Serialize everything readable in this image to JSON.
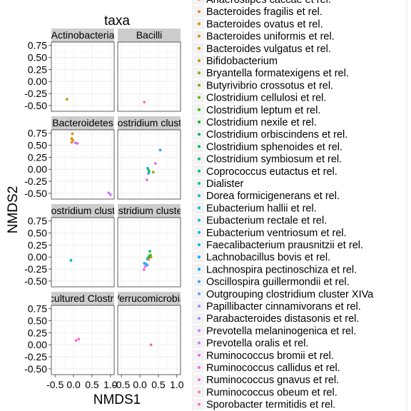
{
  "chart_data": {
    "type": "scatter",
    "title": "taxa",
    "xlabel": "NMDS1",
    "ylabel": "NMDS2",
    "xlim": [
      -0.6,
      1.1
    ],
    "ylim": [
      -0.62,
      0.82
    ],
    "x_ticks": [
      "-0.5",
      "0.0",
      "0.5",
      "1.0"
    ],
    "x_tick_values": [
      -0.5,
      0.0,
      0.5,
      1.0
    ],
    "y_ticks": [
      "0.75",
      "0.50",
      "0.25",
      "0.00",
      "-0.25",
      "-0.50"
    ],
    "y_tick_values": [
      0.75,
      0.5,
      0.25,
      0.0,
      -0.25,
      -0.5
    ],
    "facet_strip_bg": "#cccccc",
    "panel_bg": "#ffffff",
    "grid_color": "#ebebeb",
    "legend": {
      "items": [
        {
          "label": "Anaerostipes caccae et rel.",
          "color": "#f8766d"
        },
        {
          "label": "Bacteroides fragilis et rel.",
          "color": "#ef7f2e"
        },
        {
          "label": "Bacteroides ovatus et rel.",
          "color": "#e38900"
        },
        {
          "label": "Bacteroides uniformis et rel.",
          "color": "#d49200"
        },
        {
          "label": "Bacteroides vulgatus et rel.",
          "color": "#c49a00"
        },
        {
          "label": "Bifidobacterium",
          "color": "#b2a100"
        },
        {
          "label": "Bryantella formatexigens et rel.",
          "color": "#9da700"
        },
        {
          "label": "Butyrivibrio crossotus et rel.",
          "color": "#86ac00"
        },
        {
          "label": "Clostridium cellulosi et rel.",
          "color": "#6bb100"
        },
        {
          "label": "Clostridium leptum et rel.",
          "color": "#44b400"
        },
        {
          "label": "Clostridium nexile et rel.",
          "color": "#00b81f"
        },
        {
          "label": "Clostridium orbiscindens et rel.",
          "color": "#00ba48"
        },
        {
          "label": "Clostridium sphenoides et rel.",
          "color": "#00bc62"
        },
        {
          "label": "Clostridium symbiosum et rel.",
          "color": "#00be79"
        },
        {
          "label": "Coprococcus eutactus et rel.",
          "color": "#00bf8e"
        },
        {
          "label": "Dialister",
          "color": "#00c0a1"
        },
        {
          "label": "Dorea formicigenerans et rel.",
          "color": "#00c0b3"
        },
        {
          "label": "Eubacterium hallii et rel.",
          "color": "#00bfc4"
        },
        {
          "label": "Eubacterium rectale et rel.",
          "color": "#00bdd3"
        },
        {
          "label": "Eubacterium ventriosum et rel.",
          "color": "#00bae1"
        },
        {
          "label": "Faecalibacterium prausnitzii et rel.",
          "color": "#00b5ee"
        },
        {
          "label": "Lachnobacillus bovis et rel.",
          "color": "#00aff8"
        },
        {
          "label": "Lachnospira pectinoschiza et rel.",
          "color": "#00a8ff"
        },
        {
          "label": "Oscillospira guillermondii et rel.",
          "color": "#35a0ff"
        },
        {
          "label": "Outgrouping clostridium cluster XIVa",
          "color": "#6f97ff"
        },
        {
          "label": "Papillibacter cinnamivorans et rel.",
          "color": "#938dff"
        },
        {
          "label": "Parabacteroides distasonis et rel.",
          "color": "#ae83ff"
        },
        {
          "label": "Prevotella melaninogenica et rel.",
          "color": "#c37bff"
        },
        {
          "label": "Prevotella oralis et rel.",
          "color": "#d474fc"
        },
        {
          "label": "Ruminococcus bromii et rel.",
          "color": "#e16ff3"
        },
        {
          "label": "Ruminococcus callidus et rel.",
          "color": "#ec6be8"
        },
        {
          "label": "Ruminococcus gnavus et rel.",
          "color": "#f66adb"
        },
        {
          "label": "Ruminococcus obeum et rel.",
          "color": "#fb6dcb"
        },
        {
          "label": "Sporobacter termitidis et rel.",
          "color": "#fe70ba"
        }
      ]
    },
    "facets": [
      {
        "label": "Actinobacteria",
        "points": [
          {
            "x": -0.18,
            "y": -0.37,
            "c": "#b2a100"
          }
        ]
      },
      {
        "label": "Bacilli",
        "points": [
          {
            "x": 0.12,
            "y": -0.43,
            "c": "#fe70ba"
          }
        ]
      },
      {
        "label": "Bacteroidetes",
        "points": [
          {
            "x": -0.03,
            "y": 0.74,
            "c": "#e38900"
          },
          {
            "x": -0.05,
            "y": 0.64,
            "c": "#c49a00"
          },
          {
            "x": -0.02,
            "y": 0.6,
            "c": "#d49200"
          },
          {
            "x": -0.05,
            "y": 0.56,
            "c": "#ef7f2e"
          },
          {
            "x": 0.05,
            "y": 0.55,
            "c": "#ae83ff"
          },
          {
            "x": 0.1,
            "y": 0.54,
            "c": "#ec6be8"
          },
          {
            "x": 0.95,
            "y": -0.49,
            "c": "#c37bff"
          },
          {
            "x": 1.0,
            "y": -0.53,
            "c": "#d474fc"
          }
        ]
      },
      {
        "label": "Clostridium cluster",
        "points": [
          {
            "x": 0.55,
            "y": 0.4,
            "c": "#35a0ff"
          },
          {
            "x": 0.42,
            "y": 0.12,
            "c": "#fb6dcb"
          },
          {
            "x": 0.21,
            "y": 0.02,
            "c": "#00aff8"
          },
          {
            "x": 0.24,
            "y": -0.02,
            "c": "#44b400"
          },
          {
            "x": 0.36,
            "y": -0.06,
            "c": "#86ac00"
          },
          {
            "x": 0.23,
            "y": -0.09,
            "c": "#938dff"
          },
          {
            "x": 0.25,
            "y": -0.06,
            "c": "#00bfc4"
          },
          {
            "x": 0.19,
            "y": -0.22,
            "c": "#e16ff3"
          }
        ]
      },
      {
        "label": "Clostridium cluster",
        "points": [
          {
            "x": -0.07,
            "y": -0.07,
            "c": "#00c0a1"
          }
        ]
      },
      {
        "label": "Clostridium cluster X",
        "points": [
          {
            "x": 0.27,
            "y": 0.12,
            "c": "#00be79"
          },
          {
            "x": 0.29,
            "y": 0.04,
            "c": "#6bb100"
          },
          {
            "x": 0.25,
            "y": 0.02,
            "c": "#00bc62"
          },
          {
            "x": 0.3,
            "y": 0.0,
            "c": "#b2a100"
          },
          {
            "x": 0.23,
            "y": -0.02,
            "c": "#00b81f"
          },
          {
            "x": 0.2,
            "y": -0.04,
            "c": "#00bdd3"
          },
          {
            "x": 0.24,
            "y": -0.05,
            "c": "#f8766d"
          },
          {
            "x": 0.12,
            "y": -0.13,
            "c": "#00b5ee"
          },
          {
            "x": 0.17,
            "y": -0.15,
            "c": "#00a8ff"
          },
          {
            "x": 0.2,
            "y": -0.17,
            "c": "#6f97ff"
          },
          {
            "x": 0.14,
            "y": -0.2,
            "c": "#ec6be8"
          },
          {
            "x": 0.11,
            "y": -0.26,
            "c": "#f66adb"
          }
        ]
      },
      {
        "label": "Uncultured Clostridia",
        "points": [
          {
            "x": 0.07,
            "y": 0.09,
            "c": "#fe70ba"
          },
          {
            "x": 0.14,
            "y": 0.12,
            "c": "#f66adb"
          }
        ]
      },
      {
        "label": "Verrucomicrobia",
        "points": [
          {
            "x": 0.3,
            "y": 0.0,
            "c": "#f8766d"
          }
        ]
      }
    ]
  }
}
